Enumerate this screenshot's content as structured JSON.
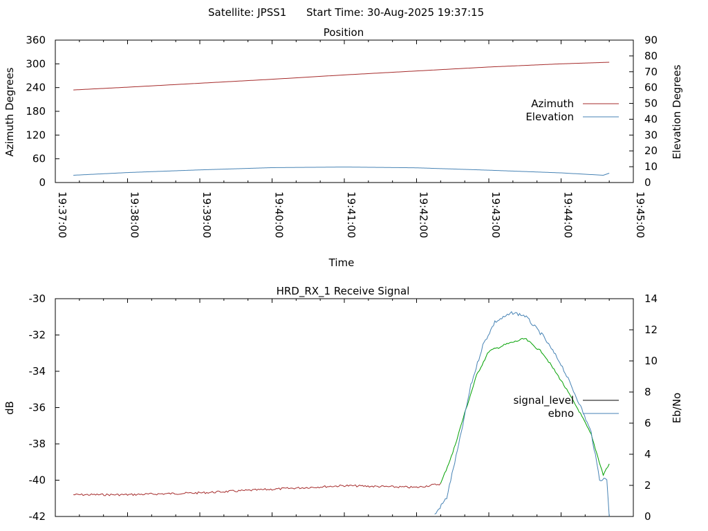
{
  "header": {
    "satellite": "Satellite: JPSS1",
    "start_time": "Start Time: 30-Aug-2025 19:37:15"
  },
  "colors": {
    "azimuth": "#a52a2a",
    "elevation": "#4682b4",
    "signal_level": "#000000",
    "ebno": "#4682b4",
    "signal_red": "#a52a2a",
    "signal_green": "#00a000"
  },
  "chart_data": [
    {
      "type": "line",
      "title": "Position",
      "xlabel": "Time",
      "ylabel": "Azimuth Degrees",
      "y2label": "Elevation Degrees",
      "xlim": [
        "19:37:00",
        "19:45:00"
      ],
      "ylim": [
        0,
        360
      ],
      "y2lim": [
        0,
        90
      ],
      "x_ticks": [
        "19:37:00",
        "19:38:00",
        "19:39:00",
        "19:40:00",
        "19:41:00",
        "19:42:00",
        "19:43:00",
        "19:44:00",
        "19:45:00"
      ],
      "y_ticks": [
        "0",
        "60",
        "120",
        "180",
        "240",
        "300",
        "360"
      ],
      "y2_ticks": [
        "0",
        "10",
        "20",
        "30",
        "40",
        "50",
        "60",
        "70",
        "80",
        "90"
      ],
      "legend_position": "right",
      "series": [
        {
          "name": "Azimuth",
          "axis": "y",
          "x": [
            "19:37:15",
            "19:38:00",
            "19:39:00",
            "19:40:00",
            "19:41:00",
            "19:42:00",
            "19:43:00",
            "19:44:00",
            "19:44:40"
          ],
          "y": [
            234,
            241,
            251,
            261,
            272,
            282,
            292,
            300,
            304
          ]
        },
        {
          "name": "Elevation",
          "axis": "y2",
          "x": [
            "19:37:15",
            "19:38:00",
            "19:39:00",
            "19:40:00",
            "19:41:00",
            "19:42:00",
            "19:43:00",
            "19:44:00",
            "19:44:35",
            "19:44:40"
          ],
          "y": [
            4.6,
            6.3,
            8.0,
            9.4,
            9.8,
            9.3,
            7.8,
            6.1,
            4.6,
            5.9
          ]
        }
      ]
    },
    {
      "type": "line",
      "title": "HRD_RX_1 Receive Signal",
      "ylabel": "dB",
      "y2label": "Eb/No",
      "xlim": [
        "19:37:00",
        "19:45:00"
      ],
      "ylim": [
        -42,
        -30
      ],
      "y2lim": [
        0,
        14
      ],
      "y_ticks": [
        "-42",
        "-40",
        "-38",
        "-36",
        "-34",
        "-32",
        "-30"
      ],
      "y2_ticks": [
        "0",
        "2",
        "4",
        "6",
        "8",
        "10",
        "12",
        "14"
      ],
      "legend_position": "right",
      "series": [
        {
          "name": "signal_level",
          "axis": "y",
          "x": [
            "19:37:15",
            "19:38:00",
            "19:39:00",
            "19:40:00",
            "19:41:00",
            "19:42:00",
            "19:42:20",
            "19:42:30",
            "19:42:40",
            "19:42:50",
            "19:43:00",
            "19:43:15",
            "19:43:30",
            "19:43:45",
            "19:44:00",
            "19:44:15",
            "19:44:25",
            "19:44:35",
            "19:44:40"
          ],
          "y": [
            -40.8,
            -40.8,
            -40.7,
            -40.5,
            -40.3,
            -40.4,
            -40.2,
            -38.5,
            -36.3,
            -34.2,
            -32.9,
            -32.5,
            -32.2,
            -33.0,
            -34.5,
            -36.2,
            -37.5,
            -39.7,
            -39.1
          ]
        },
        {
          "name": "ebno",
          "axis": "y2",
          "x": [
            "19:42:15",
            "19:42:25",
            "19:42:35",
            "19:42:45",
            "19:42:55",
            "19:43:05",
            "19:43:20",
            "19:43:30",
            "19:43:45",
            "19:44:00",
            "19:44:15",
            "19:44:25",
            "19:44:32",
            "19:44:38",
            "19:44:40"
          ],
          "y": [
            0.1,
            1.2,
            4.6,
            8.4,
            11.0,
            12.5,
            13.1,
            12.9,
            11.6,
            9.8,
            7.3,
            5.4,
            2.4,
            2.4,
            0.0
          ]
        }
      ]
    }
  ]
}
